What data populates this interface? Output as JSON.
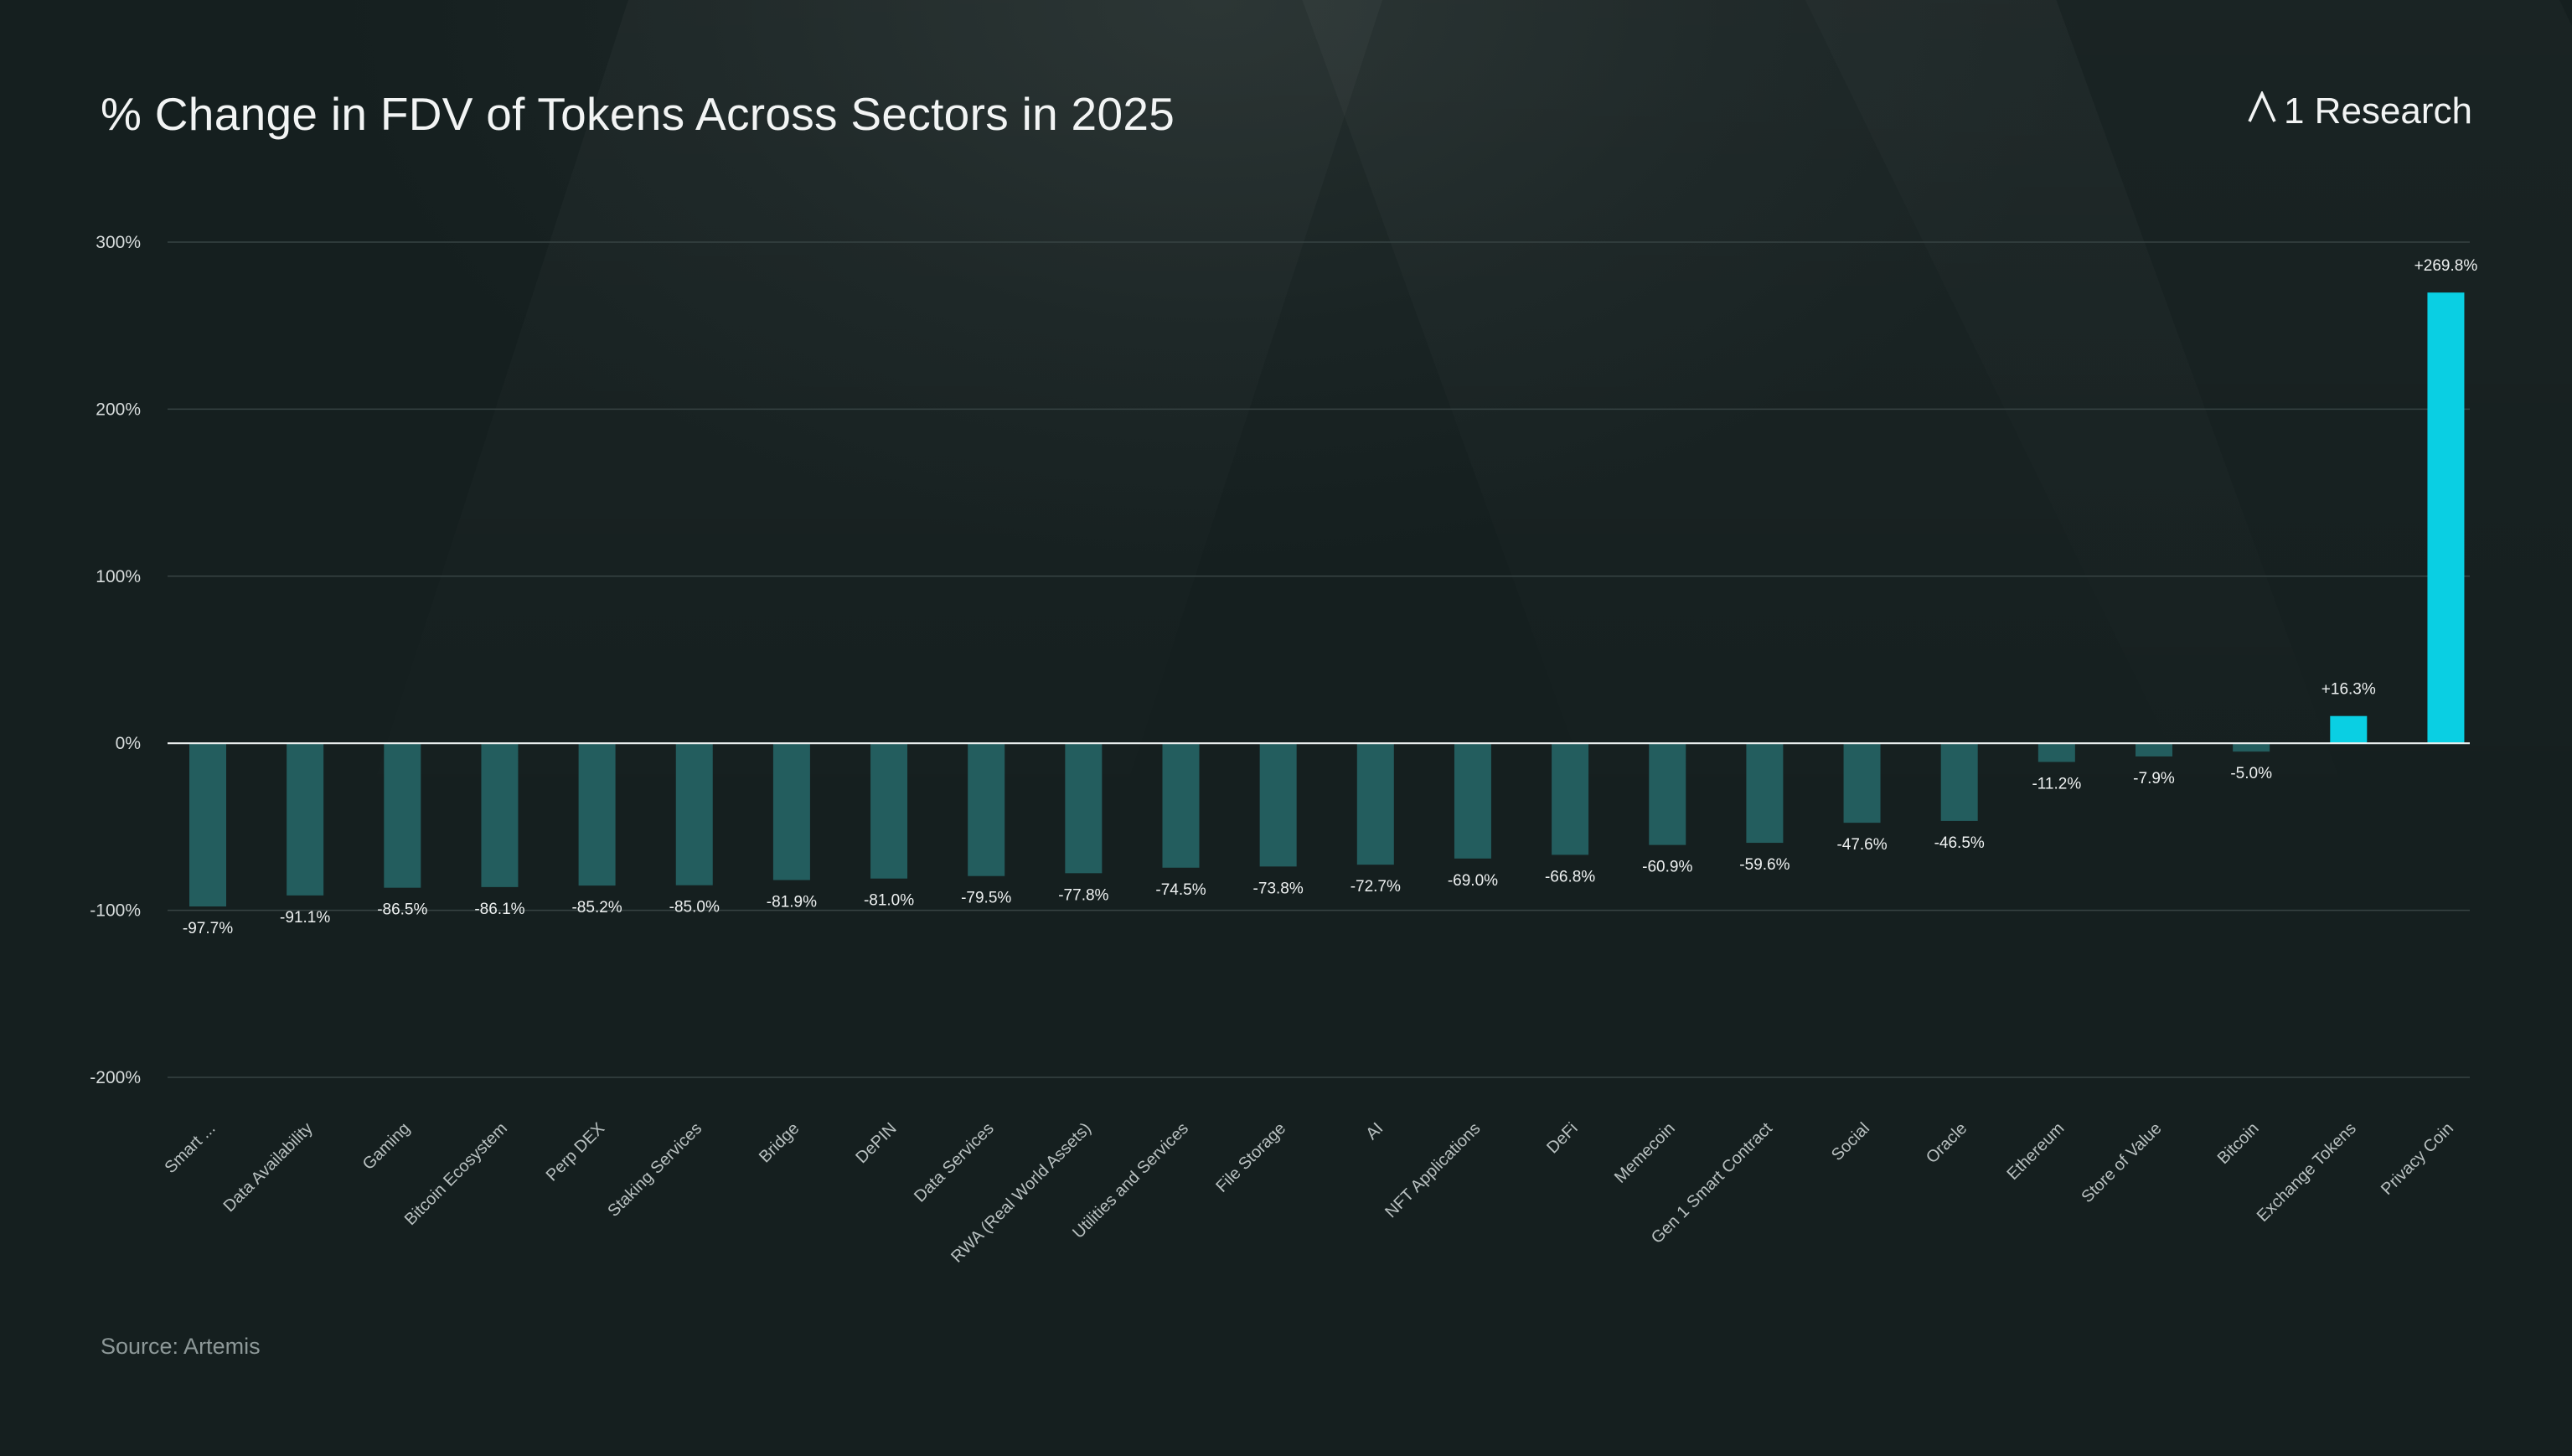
{
  "header": {
    "title": "% Change in FDV of Tokens Across Sectors in 2025",
    "brand": "1 Research",
    "brand_logo_icon": "lambda-logo-icon"
  },
  "footer": {
    "source": "Source: Artemis"
  },
  "colors": {
    "negative_bar": "#235d5e",
    "positive_bar": "#0acfe3",
    "gridline": "#374343",
    "zero_line": "#e8eded"
  },
  "chart_data": {
    "type": "bar",
    "title": "% Change in FDV of Tokens Across Sectors in 2025",
    "xlabel": "",
    "ylabel": "",
    "ylim": [
      -200,
      300
    ],
    "yticks": [
      300,
      200,
      100,
      0,
      -100,
      -200
    ],
    "ytick_labels": [
      "300%",
      "200%",
      "100%",
      "0%",
      "-100%",
      "-200%"
    ],
    "grid": true,
    "categories": [
      "Smart ...",
      "Data Availability",
      "Gaming",
      "Bitcoin Ecosystem",
      "Perp DEX",
      "Staking Services",
      "Bridge",
      "DePIN",
      "Data Services",
      "RWA (Real World Assets)",
      "Utilities and Services",
      "File Storage",
      "AI",
      "NFT Applications",
      "DeFi",
      "Memecoin",
      "Gen 1 Smart Contract",
      "Social",
      "Oracle",
      "Ethereum",
      "Store of Value",
      "Bitcoin",
      "Exchange Tokens",
      "Privacy Coin"
    ],
    "values": [
      -97.7,
      -91.1,
      -86.5,
      -86.1,
      -85.2,
      -85.0,
      -81.9,
      -81.0,
      -79.5,
      -77.8,
      -74.5,
      -73.8,
      -72.7,
      -69.0,
      -66.8,
      -60.9,
      -59.6,
      -47.6,
      -46.5,
      -11.2,
      -7.9,
      -5.0,
      16.3,
      269.8
    ],
    "value_labels": [
      "-97.7%",
      "-91.1%",
      "-86.5%",
      "-86.1%",
      "-85.2%",
      "-85.0%",
      "-81.9%",
      "-81.0%",
      "-79.5%",
      "-77.8%",
      "-74.5%",
      "-73.8%",
      "-72.7%",
      "-69.0%",
      "-66.8%",
      "-60.9%",
      "-59.6%",
      "-47.6%",
      "-46.5%",
      "-11.2%",
      "-7.9%",
      "-5.0%",
      "+16.3%",
      "+269.8%"
    ],
    "highlighted": [
      "Exchange Tokens",
      "Privacy Coin"
    ]
  }
}
